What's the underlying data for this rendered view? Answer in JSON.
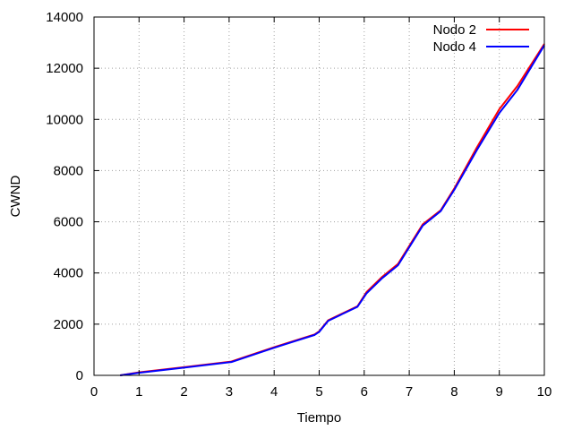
{
  "chart_data": {
    "type": "line",
    "xlabel": "Tiempo",
    "ylabel": "CWND",
    "xlim": [
      0,
      10
    ],
    "ylim": [
      0,
      14000
    ],
    "xticks": [
      0,
      1,
      2,
      3,
      4,
      5,
      6,
      7,
      8,
      9,
      10
    ],
    "yticks": [
      0,
      2000,
      4000,
      6000,
      8000,
      10000,
      12000,
      14000
    ],
    "grid": true,
    "legend_position": "top-right",
    "series": [
      {
        "name": "Nodo 2",
        "color": "#ff0000",
        "x": [
          0.58,
          1.0,
          2.0,
          3.05,
          4.0,
          4.9,
          5.0,
          5.2,
          5.85,
          6.05,
          6.4,
          6.75,
          7.3,
          7.7,
          8.0,
          8.5,
          9.0,
          9.4,
          10.0
        ],
        "y": [
          0,
          120,
          320,
          540,
          1100,
          1600,
          1720,
          2150,
          2700,
          3250,
          3850,
          4350,
          5900,
          6450,
          7300,
          8900,
          10400,
          11300,
          12950
        ]
      },
      {
        "name": "Nodo 4",
        "color": "#0000ff",
        "x": [
          0.58,
          1.0,
          2.0,
          3.05,
          4.0,
          4.9,
          5.0,
          5.2,
          5.85,
          6.05,
          6.4,
          6.75,
          7.3,
          7.7,
          8.0,
          8.5,
          9.0,
          9.4,
          10.0
        ],
        "y": [
          0,
          100,
          300,
          520,
          1080,
          1580,
          1700,
          2130,
          2680,
          3200,
          3800,
          4300,
          5850,
          6420,
          7250,
          8800,
          10250,
          11150,
          12900
        ]
      }
    ]
  }
}
